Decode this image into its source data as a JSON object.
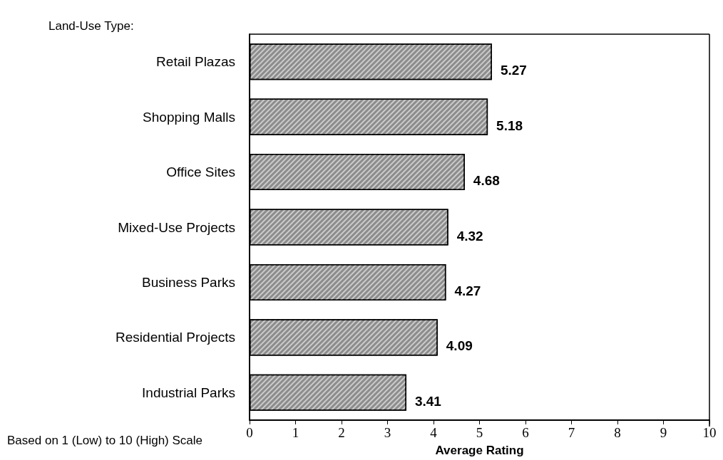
{
  "chart_data": {
    "type": "bar",
    "orientation": "horizontal",
    "ylabel": "Land-Use Type:",
    "xlabel": "Average Rating",
    "categories": [
      "Retail Plazas",
      "Shopping Malls",
      "Office Sites",
      "Mixed-Use Projects",
      "Business Parks",
      "Residential Projects",
      "Industrial Parks"
    ],
    "values": [
      5.27,
      5.18,
      4.68,
      4.32,
      4.27,
      4.09,
      3.41
    ],
    "color": "#8c8c8c",
    "xlim": [
      0,
      10
    ],
    "xticks": [
      0,
      1,
      2,
      3,
      4,
      5,
      6,
      7,
      8,
      9,
      10
    ],
    "grid": false,
    "data_labels": true,
    "annotations": [
      "Based on 1 (Low) to 10 (High) Scale"
    ]
  }
}
